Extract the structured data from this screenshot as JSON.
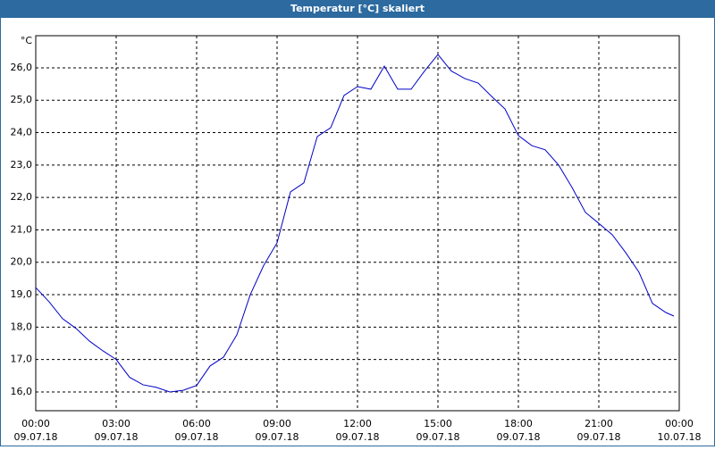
{
  "chart_data": {
    "type": "line",
    "title": "Temperatur [°C] skaliert",
    "y_unit": "°C",
    "x": [
      0,
      0.5,
      1,
      1.5,
      2,
      2.5,
      3,
      3.5,
      4,
      4.5,
      5,
      5.5,
      6,
      6.5,
      7,
      7.5,
      8,
      8.5,
      9,
      9.5,
      10,
      10.5,
      11,
      11.5,
      12,
      12.5,
      13,
      13.5,
      14,
      14.5,
      15,
      15.5,
      16,
      16.5,
      17,
      17.5,
      18,
      18.5,
      19,
      19.5,
      20,
      20.5,
      21,
      21.5,
      22,
      22.5,
      23,
      23.5,
      23.8
    ],
    "series": [
      {
        "name": "Temperatur",
        "color": "#0000c8",
        "values": [
          19.22,
          18.78,
          18.26,
          17.96,
          17.57,
          17.27,
          17.0,
          16.45,
          16.22,
          16.14,
          16.0,
          16.05,
          16.2,
          16.8,
          17.07,
          17.76,
          19.0,
          19.9,
          20.6,
          22.17,
          22.45,
          23.88,
          24.15,
          25.15,
          25.42,
          25.34,
          26.05,
          25.34,
          25.34,
          25.9,
          26.41,
          25.9,
          25.67,
          25.53,
          25.12,
          24.73,
          23.91,
          23.6,
          23.47,
          23.0,
          22.31,
          21.54,
          21.2,
          20.85,
          20.3,
          19.69,
          18.73,
          18.45,
          18.34
        ]
      }
    ],
    "xlim": [
      0,
      24
    ],
    "xticks": [
      {
        "value": 0,
        "label": "00:00"
      },
      {
        "value": 3,
        "label": "03:00"
      },
      {
        "value": 6,
        "label": "06:00"
      },
      {
        "value": 9,
        "label": "09:00"
      },
      {
        "value": 12,
        "label": "12:00"
      },
      {
        "value": 15,
        "label": "15:00"
      },
      {
        "value": 18,
        "label": "18:00"
      },
      {
        "value": 21,
        "label": "21:00"
      },
      {
        "value": 24,
        "label": "00:00"
      }
    ],
    "xtick_dates": [
      "09.07.18",
      "09.07.18",
      "09.07.18",
      "09.07.18",
      "09.07.18",
      "09.07.18",
      "09.07.18",
      "09.07.18",
      "10.07.18"
    ],
    "ylim": [
      15.42,
      26.99
    ],
    "yticks": [
      {
        "value": 16,
        "label": "16,0"
      },
      {
        "value": 17,
        "label": "17,0"
      },
      {
        "value": 18,
        "label": "18,0"
      },
      {
        "value": 19,
        "label": "19,0"
      },
      {
        "value": 20,
        "label": "20,0"
      },
      {
        "value": 21,
        "label": "21,0"
      },
      {
        "value": 22,
        "label": "22,0"
      },
      {
        "value": 23,
        "label": "23,0"
      },
      {
        "value": 24,
        "label": "24,0"
      },
      {
        "value": 25,
        "label": "25,0"
      },
      {
        "value": 26,
        "label": "26,0"
      }
    ],
    "grid": true
  }
}
